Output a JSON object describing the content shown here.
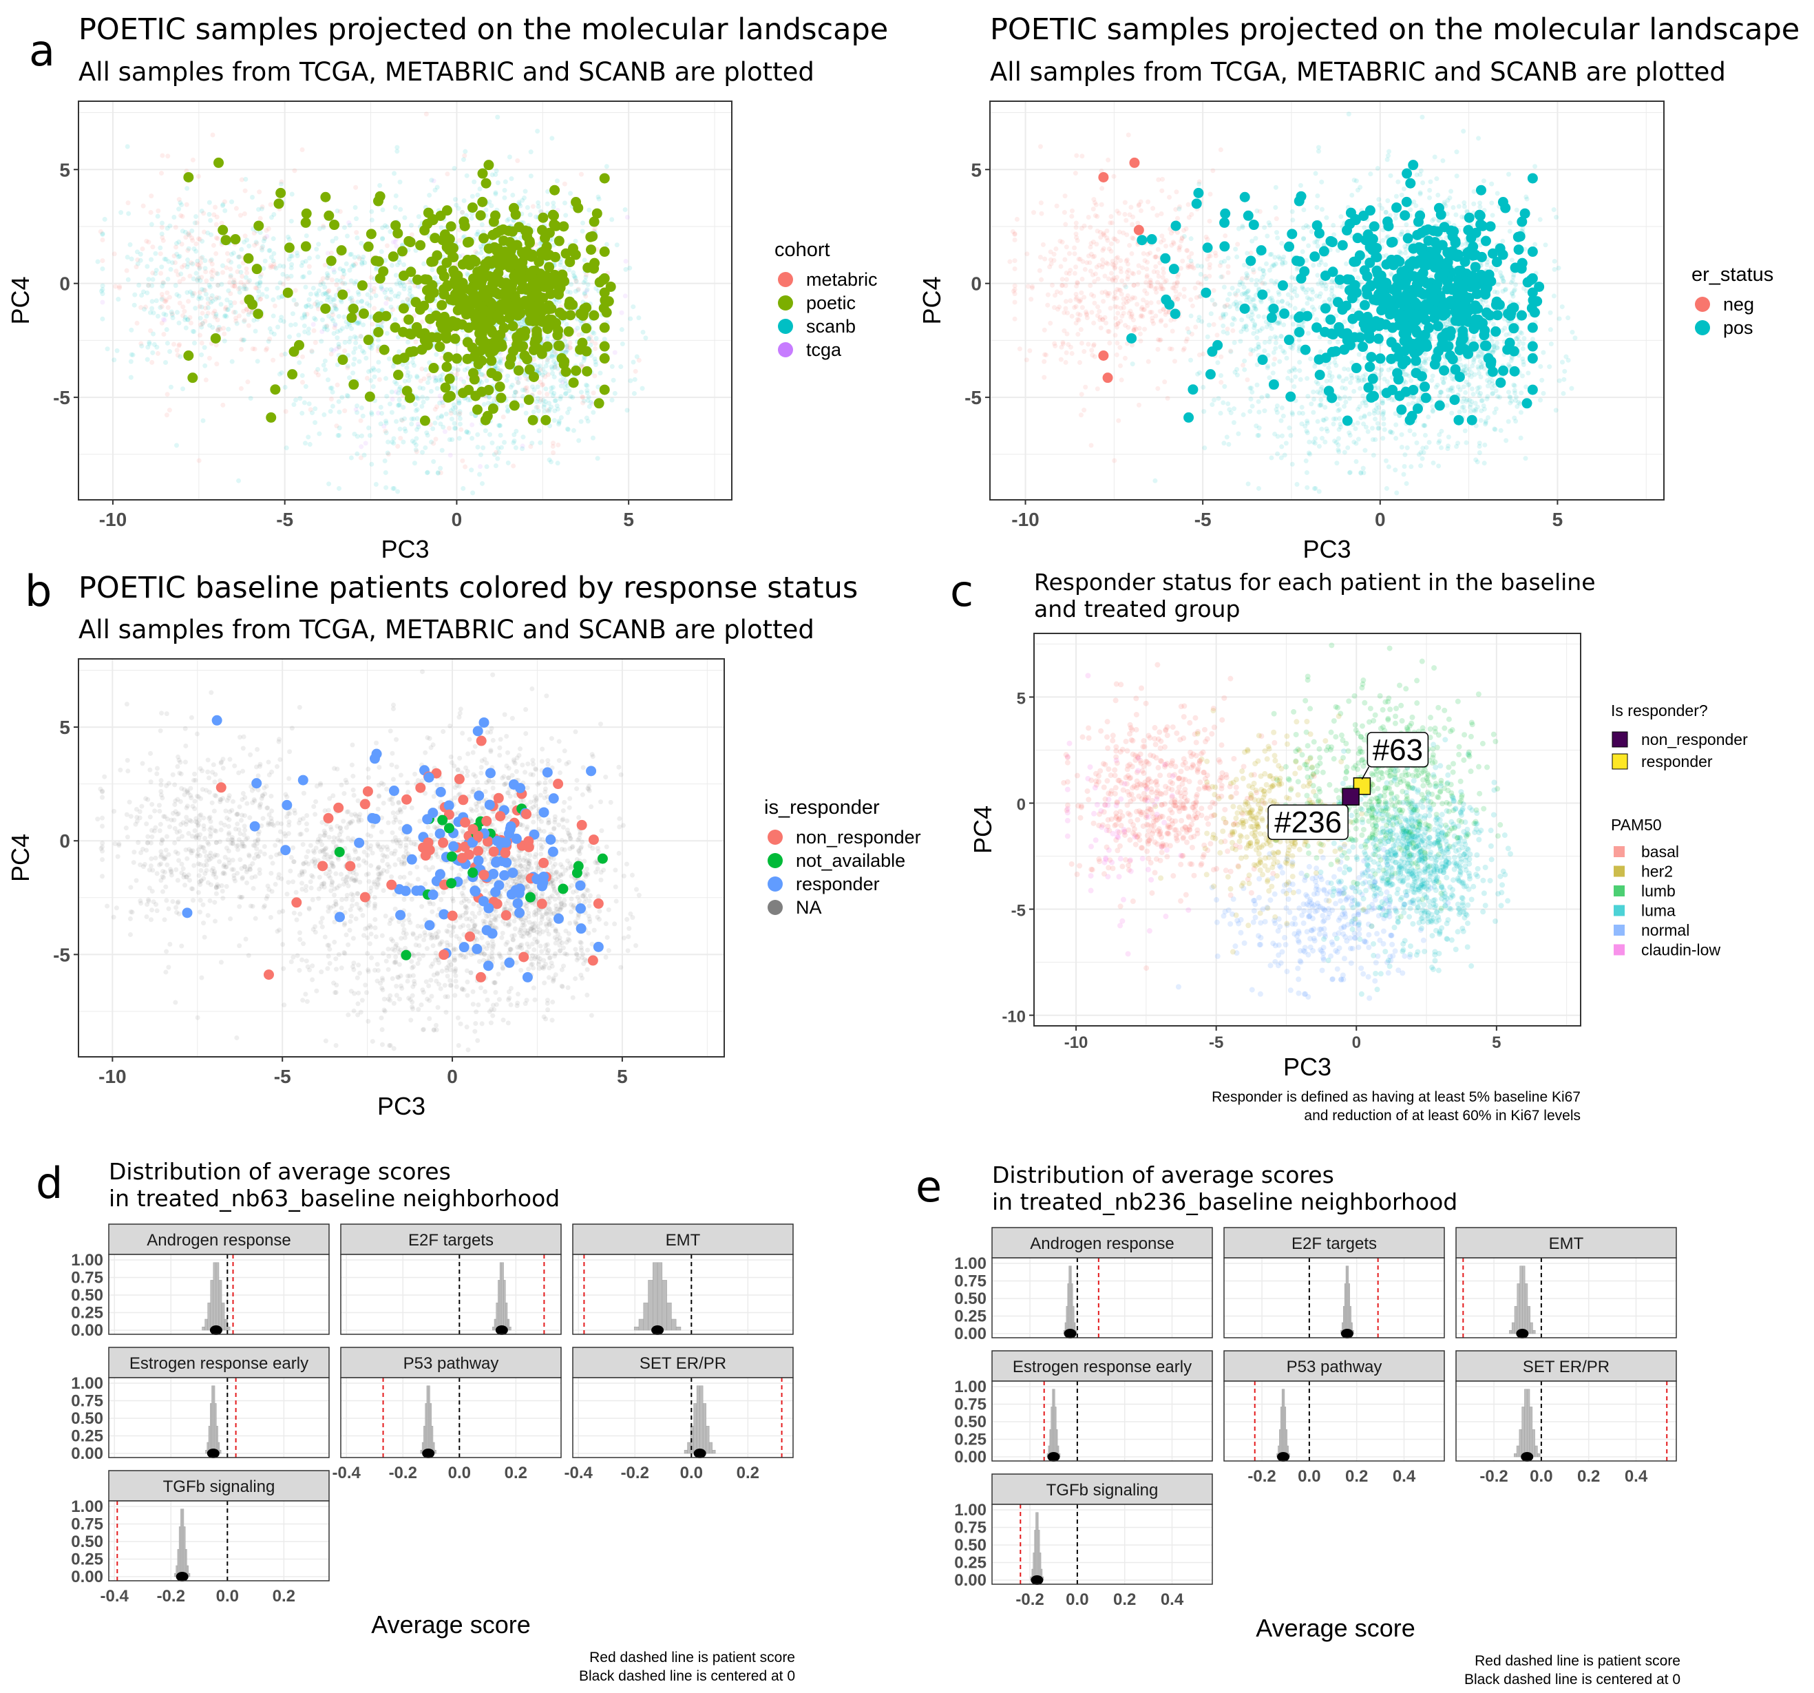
{
  "panels": {
    "a": {
      "label": "a",
      "title": "POETIC samples projected on the molecular landscape",
      "subtitle": "All samples from TCGA, METABRIC and SCANB are plotted"
    },
    "a2": {
      "title": "POETIC samples projected on the molecular landscape",
      "subtitle": "All samples from TCGA, METABRIC and SCANB are plotted"
    },
    "b": {
      "label": "b",
      "title": "POETIC baseline patients colored by response status",
      "subtitle": "All samples from TCGA, METABRIC and SCANB are plotted"
    },
    "c": {
      "label": "c",
      "title_line1": "Responder status for each patient in the baseline",
      "title_line2": "and treated group",
      "note_line1": "Responder is defined as having at least 5% baseline Ki67",
      "note_line2": "and reduction of at least 60% in Ki67 levels",
      "callout1": "#63",
      "callout2": "#236"
    },
    "d": {
      "label": "d",
      "title_line1": "Distribution of average scores",
      "title_line2": "in treated_nb63_baseline neighborhood",
      "xlabel": "Average score",
      "note_line1": "Red dashed line is patient score",
      "note_line2": "Black dashed line is centered at 0"
    },
    "e": {
      "label": "e",
      "title_line1": "Distribution of average scores",
      "title_line2": "in treated_nb236_baseline neighborhood",
      "xlabel": "Average score",
      "note_line1": "Red dashed line is patient score",
      "note_line2": "Black dashed line is centered at 0"
    }
  },
  "colors": {
    "metabric": "#F8766D",
    "poetic": "#7CAE00",
    "scanb": "#00BFC4",
    "tcga": "#C77CFF",
    "neg": "#F8766D",
    "pos": "#00BFC4",
    "non_responder": "#F8766D",
    "not_available": "#00BA38",
    "responder": "#619CFF",
    "NA": "#7F7F7F",
    "non_responder_sq": "#440154",
    "responder_sq": "#FDE725",
    "basal": "#F8766D",
    "her2": "#B79F00",
    "lumb": "#00BA38",
    "luma": "#00BFC4",
    "normal": "#619CFF",
    "claudin_low": "#F564E3",
    "patient_line": "#E41A1C"
  },
  "chart_data": [
    {
      "id": "a",
      "type": "scatter",
      "xlabel": "PC3",
      "ylabel": "PC4",
      "xticks": [
        -10,
        -5,
        0,
        5
      ],
      "yticks": [
        5,
        0,
        -5
      ],
      "xlim": [
        -11,
        8
      ],
      "ylim": [
        -9.5,
        8
      ],
      "legend_title": "cohort",
      "legend_position": "right",
      "legend": [
        "metabric",
        "poetic",
        "scanb",
        "tcga"
      ],
      "highlight_series": "poetic",
      "background_series": [
        "metabric",
        "scanb",
        "tcga"
      ]
    },
    {
      "id": "a2",
      "type": "scatter",
      "xlabel": "PC3",
      "ylabel": "PC4",
      "xticks": [
        -10,
        -5,
        0,
        5
      ],
      "yticks": [
        5,
        0,
        -5
      ],
      "xlim": [
        -11,
        8
      ],
      "ylim": [
        -9.5,
        8
      ],
      "legend_title": "er_status",
      "legend_position": "right",
      "legend": [
        "neg",
        "pos"
      ]
    },
    {
      "id": "b",
      "type": "scatter",
      "xlabel": "PC3",
      "ylabel": "PC4",
      "xticks": [
        -10,
        -5,
        0,
        5
      ],
      "yticks": [
        5,
        0,
        -5
      ],
      "xlim": [
        -11,
        8
      ],
      "ylim": [
        -9.5,
        8
      ],
      "legend_title": "is_responder",
      "legend_position": "right",
      "legend": [
        "non_responder",
        "not_available",
        "responder",
        "NA"
      ]
    },
    {
      "id": "c",
      "type": "scatter",
      "xlabel": "PC3",
      "ylabel": "PC4",
      "xticks": [
        -10,
        -5,
        0,
        5
      ],
      "yticks": [
        5,
        0,
        -5,
        -10
      ],
      "xlim": [
        -11.5,
        8
      ],
      "ylim": [
        -10.5,
        8
      ],
      "legend_title": "Is responder?",
      "legend": [
        "non_responder",
        "responder"
      ],
      "legend2_title": "PAM50",
      "legend2": [
        "basal",
        "her2",
        "lumb",
        "luma",
        "normal",
        "claudin-low"
      ],
      "highlighted": [
        {
          "label": "#63",
          "x": 0.2,
          "y": 0.8,
          "status": "responder"
        },
        {
          "label": "#236",
          "x": -0.2,
          "y": 0.3,
          "status": "non_responder"
        }
      ]
    },
    {
      "id": "d",
      "type": "histogram",
      "xlabel": "Average score",
      "yticks": [
        "1.00",
        "0.75",
        "0.50",
        "0.25",
        "0.00"
      ],
      "xticks": [
        "-0.4",
        "-0.2",
        "0.0",
        "0.2"
      ],
      "xlim": [
        -0.42,
        0.36
      ],
      "facets": [
        {
          "name": "Androgen response",
          "center": -0.04,
          "sd": 0.018,
          "patient": 0.02
        },
        {
          "name": "E2F targets",
          "center": 0.15,
          "sd": 0.012,
          "patient": 0.3
        },
        {
          "name": "EMT",
          "center": -0.12,
          "sd": 0.03,
          "patient": -0.38
        },
        {
          "name": "Estrogen response early",
          "center": -0.05,
          "sd": 0.01,
          "patient": 0.03
        },
        {
          "name": "P53 pathway",
          "center": -0.11,
          "sd": 0.01,
          "patient": -0.27
        },
        {
          "name": "SET ER/PR",
          "center": 0.03,
          "sd": 0.02,
          "patient": 0.32
        },
        {
          "name": "TGFb signaling",
          "center": -0.16,
          "sd": 0.01,
          "patient": -0.39
        }
      ]
    },
    {
      "id": "e",
      "type": "histogram",
      "xlabel": "Average score",
      "yticks": [
        "1.00",
        "0.75",
        "0.50",
        "0.25",
        "0.00"
      ],
      "xticks": [
        "-0.2",
        "0.0",
        "0.2",
        "0.4"
      ],
      "xlim": [
        -0.36,
        0.57
      ],
      "facets": [
        {
          "name": "Androgen response",
          "center": -0.03,
          "sd": 0.01,
          "patient": 0.09
        },
        {
          "name": "E2F targets",
          "center": 0.16,
          "sd": 0.01,
          "patient": 0.29
        },
        {
          "name": "EMT",
          "center": -0.08,
          "sd": 0.02,
          "patient": -0.33
        },
        {
          "name": "Estrogen response early",
          "center": -0.1,
          "sd": 0.01,
          "patient": -0.14
        },
        {
          "name": "P53 pathway",
          "center": -0.11,
          "sd": 0.01,
          "patient": -0.23
        },
        {
          "name": "SET ER/PR",
          "center": -0.06,
          "sd": 0.02,
          "patient": 0.53
        },
        {
          "name": "TGFb signaling",
          "center": -0.17,
          "sd": 0.01,
          "patient": -0.24
        }
      ]
    }
  ]
}
